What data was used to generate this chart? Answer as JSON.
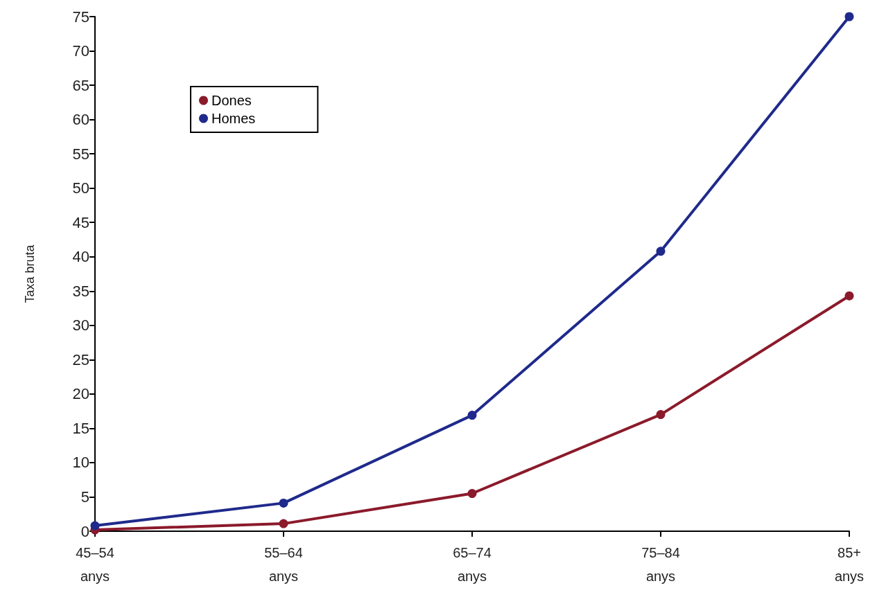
{
  "chart_data": {
    "type": "line",
    "ylabel": "Taxa bruta",
    "categories": [
      "45–54\nanys",
      "55–64\nanys",
      "65–74\nanys",
      "75–84\nanys",
      "85+\nanys"
    ],
    "series": [
      {
        "name": "Dones",
        "color": "#8b1a2b",
        "values": [
          0.2,
          1.1,
          5.5,
          17,
          34.3
        ]
      },
      {
        "name": "Homes",
        "color": "#1f2a8c",
        "values": [
          0.8,
          4.1,
          16.9,
          40.8,
          75
        ]
      }
    ],
    "ylim": [
      0,
      75
    ],
    "yticks": [
      0,
      5,
      10,
      15,
      20,
      25,
      30,
      35,
      40,
      45,
      50,
      55,
      60,
      65,
      70,
      75
    ],
    "grid": false,
    "legend": "top left",
    "marker": "circle",
    "line_style": "solid"
  }
}
